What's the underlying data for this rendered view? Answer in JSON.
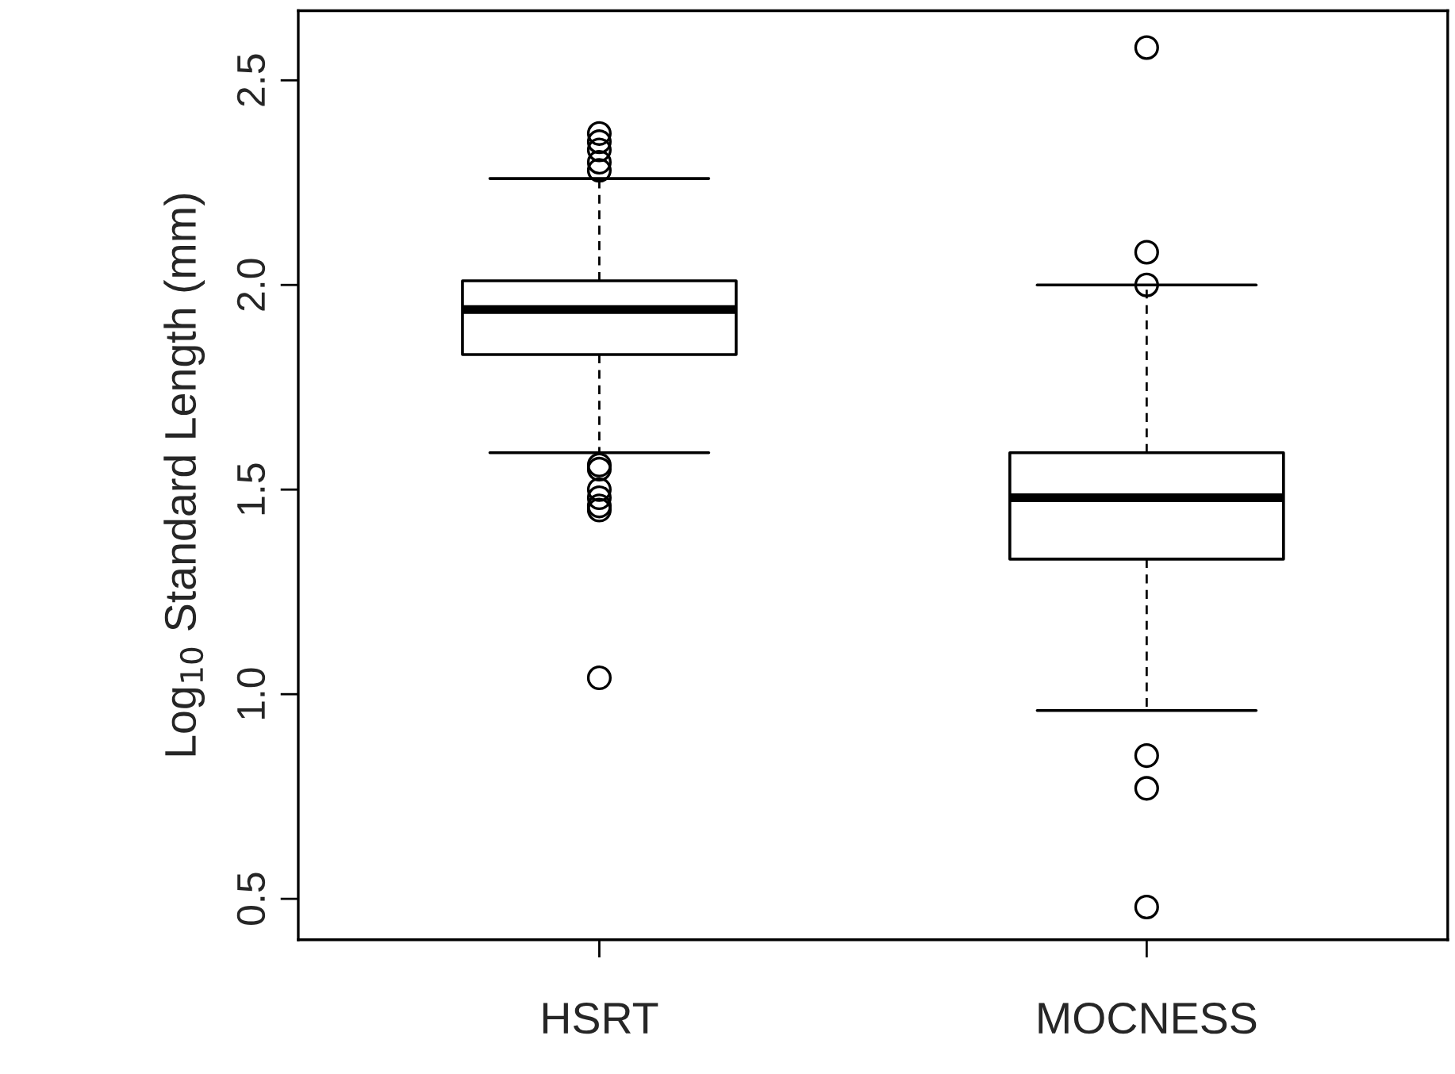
{
  "chart_data": {
    "type": "box",
    "ylabel": "Log$_{10}$ Standard Length (mm)",
    "categories": [
      "HSRT",
      "MOCNESS"
    ],
    "boxes": [
      {
        "low": 1.59,
        "q1": 1.83,
        "median": 1.94,
        "q3": 2.01,
        "high": 2.26,
        "outliers": [
          2.37,
          2.35,
          2.33,
          2.3,
          2.28,
          1.56,
          1.55,
          1.5,
          1.48,
          1.46,
          1.45,
          1.04
        ]
      },
      {
        "low": 0.96,
        "q1": 1.33,
        "median": 1.48,
        "q3": 1.59,
        "high": 2.0,
        "outliers": [
          2.58,
          2.08,
          2.0,
          0.85,
          0.77,
          0.48
        ]
      }
    ],
    "ylim": [
      0.4,
      2.67
    ],
    "yticks": [
      0.5,
      {
        "value": 1,
        "label": "1.0"
      },
      1.5,
      {
        "value": 2,
        "label": "2.0"
      },
      2.5
    ],
    "grid": false,
    "legend": false
  }
}
